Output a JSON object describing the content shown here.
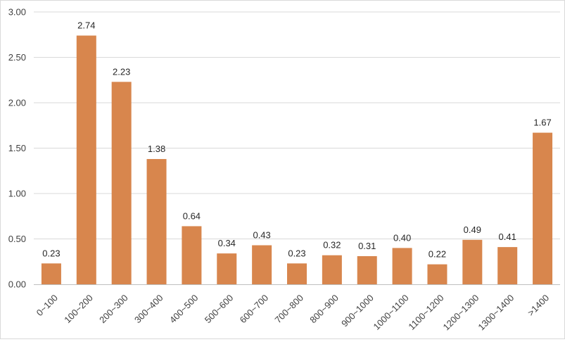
{
  "chart_data": {
    "type": "bar",
    "title": "",
    "xlabel": "",
    "ylabel": "",
    "ylim": [
      0,
      3.0
    ],
    "ytick_step": 0.5,
    "ytick_labels": [
      "0.00",
      "0.50",
      "1.00",
      "1.50",
      "2.00",
      "2.50",
      "3.00"
    ],
    "grid": true,
    "legend": "none",
    "bar_color": "#D8864D",
    "categories": [
      "0~100",
      "100~200",
      "200~300",
      "300~400",
      "400~500",
      "500~600",
      "600~700",
      "700~800",
      "800~900",
      "900~1000",
      "1000~1100",
      "1100~1200",
      "1200~1300",
      "1300~1400",
      ">1400"
    ],
    "values": [
      0.23,
      2.74,
      2.23,
      1.38,
      0.64,
      0.34,
      0.43,
      0.23,
      0.32,
      0.31,
      0.4,
      0.22,
      0.49,
      0.41,
      1.67
    ],
    "value_labels": [
      "0.23",
      "2.74",
      "2.23",
      "1.38",
      "0.64",
      "0.34",
      "0.43",
      "0.23",
      "0.32",
      "0.31",
      "0.40",
      "0.22",
      "0.49",
      "0.41",
      "1.67"
    ]
  }
}
